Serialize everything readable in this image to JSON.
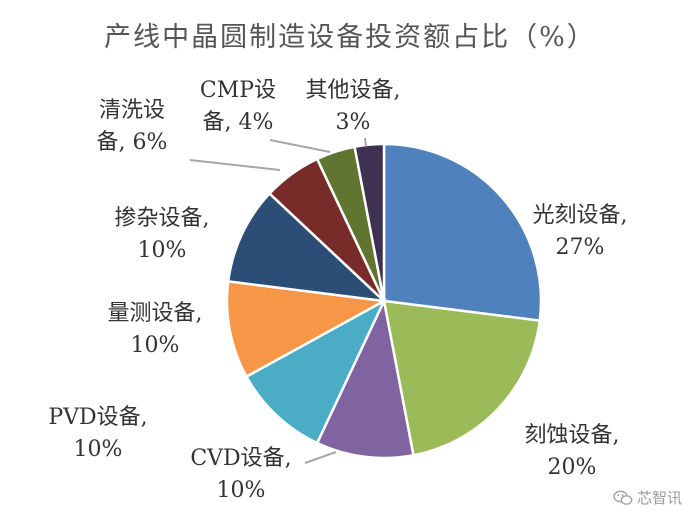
{
  "chart_data": {
    "type": "pie",
    "title": "产线中晶圆制造设备投资额占比（%）",
    "unit": "%",
    "slices": [
      {
        "label": "光刻设备",
        "value": 27,
        "color": "#4f81bd",
        "text": [
          "光刻设备,",
          "27%"
        ]
      },
      {
        "label": "刻蚀设备",
        "value": 20,
        "color": "#9bbb59",
        "text": [
          "刻蚀设备,",
          "20%"
        ]
      },
      {
        "label": "CVD设备",
        "value": 10,
        "color": "#8064a2",
        "text": [
          "CVD设备,",
          "10%"
        ]
      },
      {
        "label": "PVD设备",
        "value": 10,
        "color": "#4bacc6",
        "text": [
          "PVD设备,",
          "10%"
        ]
      },
      {
        "label": "量测设备",
        "value": 10,
        "color": "#f79646",
        "text": [
          "量测设备,",
          "10%"
        ]
      },
      {
        "label": "掺杂设备",
        "value": 10,
        "color": "#2c4d75",
        "text": [
          "掺杂设备,",
          "10%"
        ]
      },
      {
        "label": "清洗设备",
        "value": 6,
        "color": "#772c2a",
        "text": [
          "清洗设",
          "备, 6%"
        ]
      },
      {
        "label": "CMP设备",
        "value": 4,
        "color": "#5f7530",
        "text": [
          "CMP设",
          "备, 4%"
        ]
      },
      {
        "label": "其他设备",
        "value": 3,
        "color": "#3f3151",
        "text": [
          "其他设备,",
          "3%"
        ]
      }
    ]
  },
  "watermark": {
    "text": "芯智讯",
    "icon": "wechat-icon"
  }
}
